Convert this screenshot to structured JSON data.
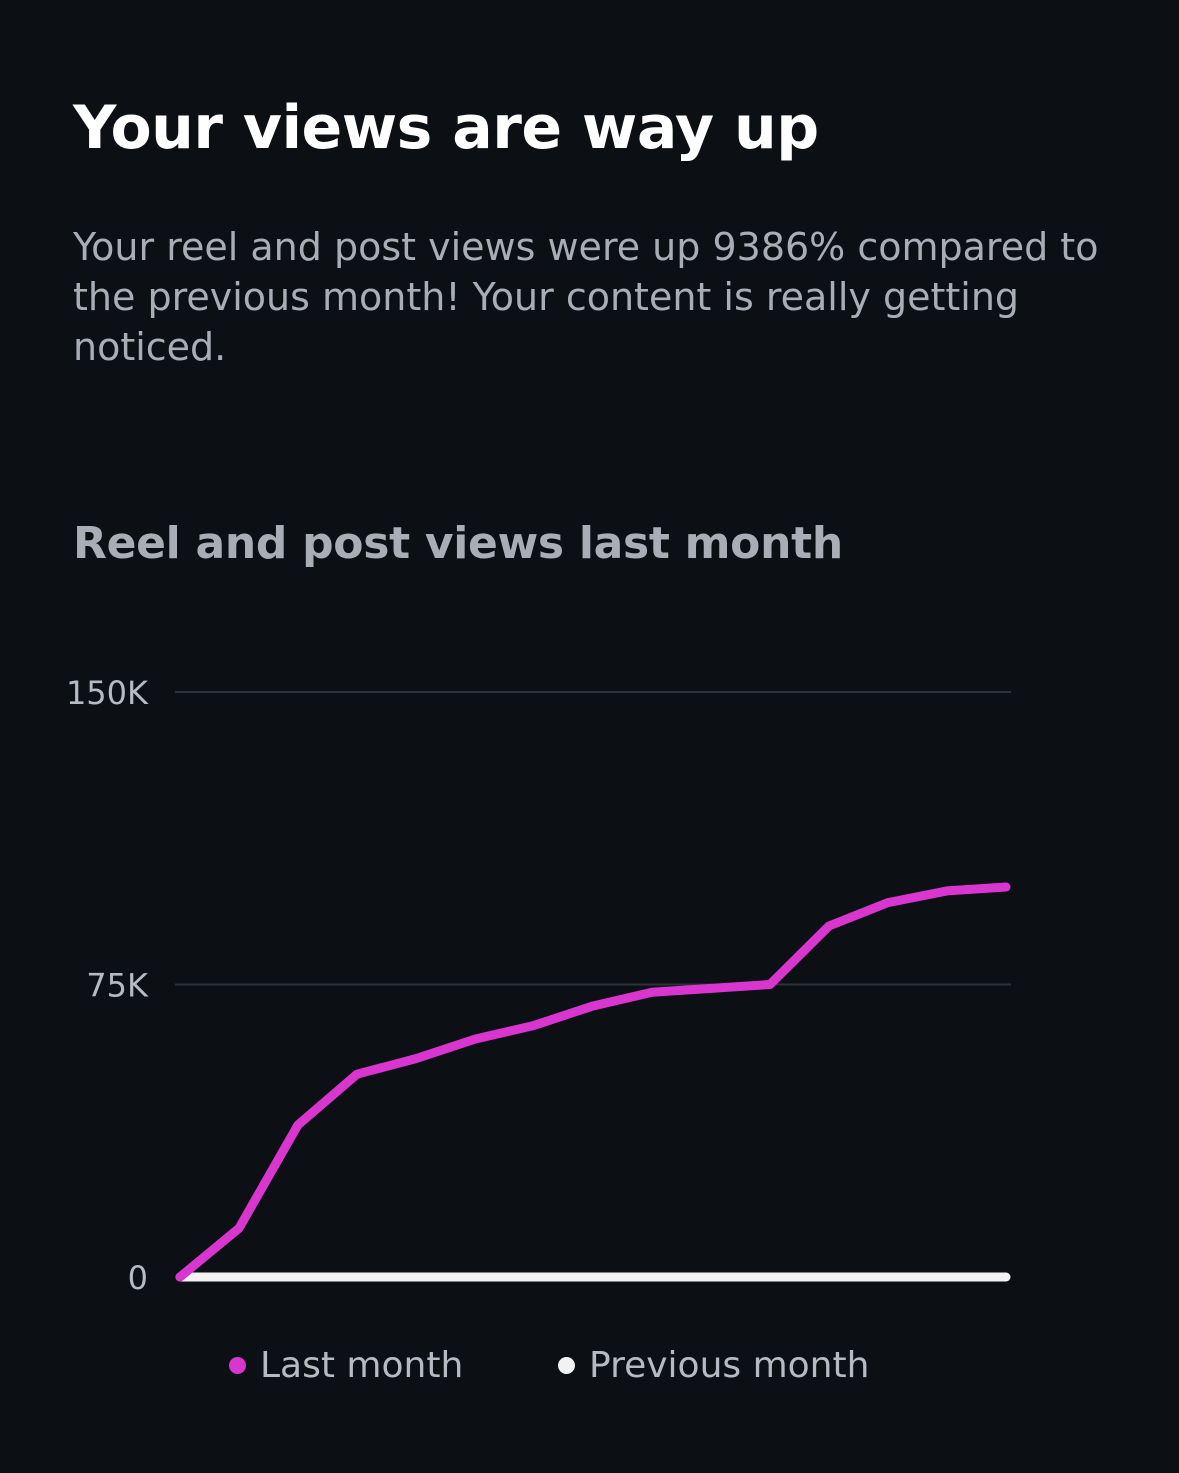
{
  "headline": "Your views are way up",
  "body": "Your reel and post views were up 9386% compared to the previous month! Your content is really getting noticed.",
  "chart_data": {
    "type": "line",
    "title": "Reel and post views last month",
    "ylim": [
      0,
      150000
    ],
    "yticks": [
      {
        "value": 0,
        "label": "0"
      },
      {
        "value": 75000,
        "label": "75K"
      },
      {
        "value": 150000,
        "label": "150K"
      }
    ],
    "grid": true,
    "legend_position": "bottom",
    "x": [
      1,
      2,
      3,
      4,
      5,
      6,
      7,
      8,
      9,
      10,
      11,
      12,
      13,
      14,
      15
    ],
    "series": [
      {
        "name": "Last month",
        "color": "#d936d0",
        "values": [
          0,
          12500,
          39000,
          52000,
          56000,
          61000,
          64500,
          69500,
          73000,
          74000,
          75000,
          90000,
          96000,
          99000,
          100000
        ]
      },
      {
        "name": "Previous month",
        "color": "#f2f2f2",
        "values": [
          0,
          0,
          0,
          0,
          0,
          0,
          0,
          0,
          0,
          0,
          0,
          0,
          0,
          0,
          0
        ]
      }
    ]
  }
}
